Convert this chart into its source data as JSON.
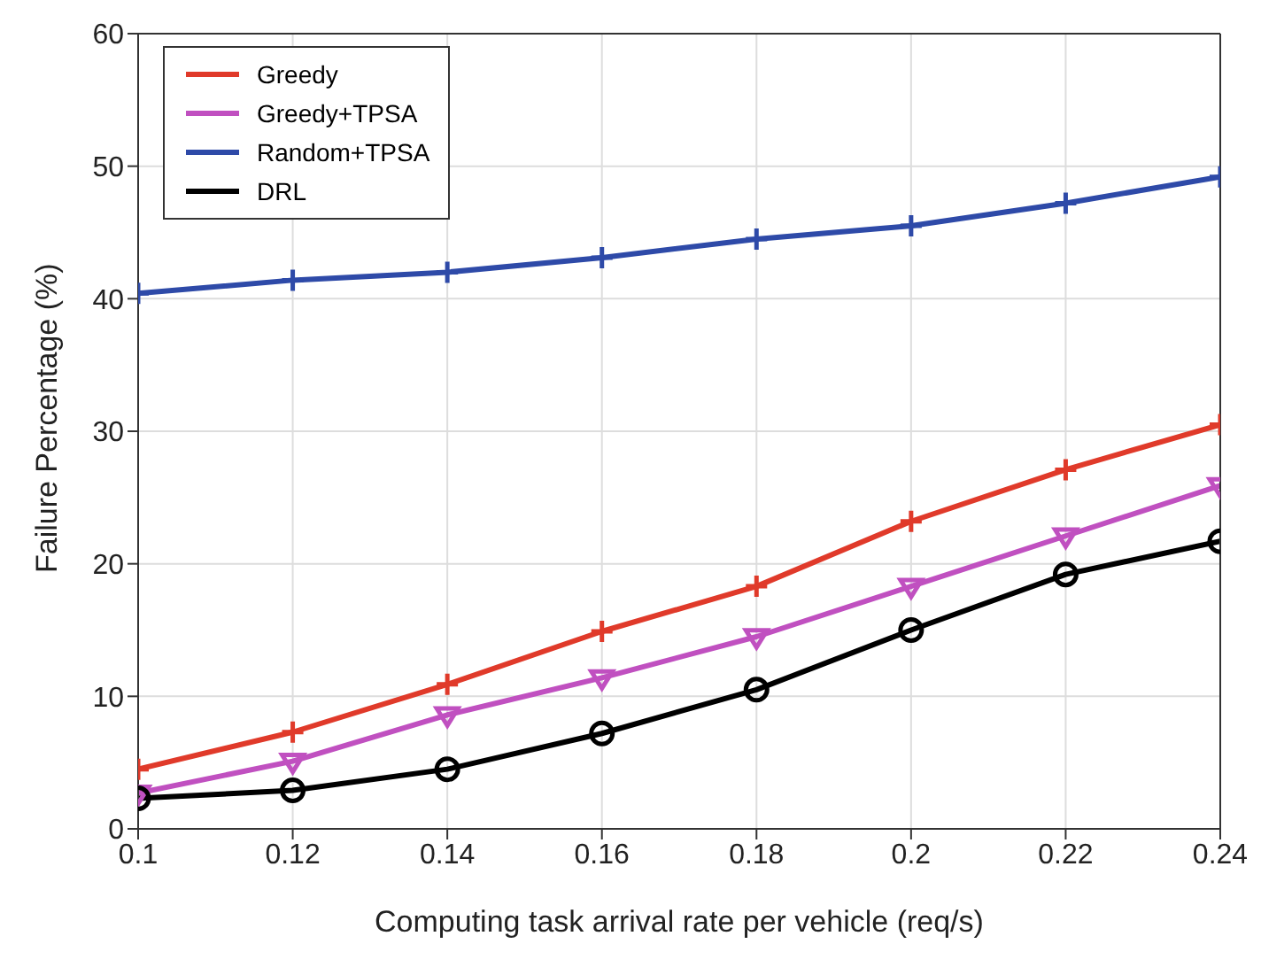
{
  "chart_data": {
    "type": "line",
    "xlabel": "Computing task arrival rate per vehicle (req/s)",
    "ylabel": "Failure Percentage (%)",
    "x": [
      0.1,
      0.12,
      0.14,
      0.16,
      0.18,
      0.2,
      0.22,
      0.24
    ],
    "series": [
      {
        "name": "Greedy",
        "color": "#e03a2a",
        "marker": "cross",
        "values": [
          4.5,
          7.3,
          10.9,
          14.9,
          18.3,
          23.2,
          27.1,
          30.5
        ]
      },
      {
        "name": "Greedy+TPSA",
        "color": "#c050c0",
        "marker": "triangle",
        "values": [
          2.7,
          5.1,
          8.6,
          11.4,
          14.5,
          18.3,
          22.1,
          25.9
        ]
      },
      {
        "name": "Random+TPSA",
        "color": "#2e4aa8",
        "marker": "cross",
        "values": [
          40.4,
          41.4,
          42.0,
          43.1,
          44.5,
          45.5,
          47.2,
          49.2
        ]
      },
      {
        "name": "DRL",
        "color": "#000000",
        "marker": "circle",
        "values": [
          2.3,
          2.9,
          4.5,
          7.2,
          10.5,
          15.0,
          19.2,
          21.7
        ]
      }
    ],
    "xlim": [
      0.1,
      0.24
    ],
    "xticks": [
      0.1,
      0.12,
      0.14,
      0.16,
      0.18,
      0.2,
      0.22,
      0.24
    ],
    "ylim": [
      0,
      60
    ],
    "yticks": [
      0,
      10,
      20,
      30,
      40,
      50,
      60
    ],
    "grid": true,
    "legend": "top left",
    "line_style": "solid"
  }
}
